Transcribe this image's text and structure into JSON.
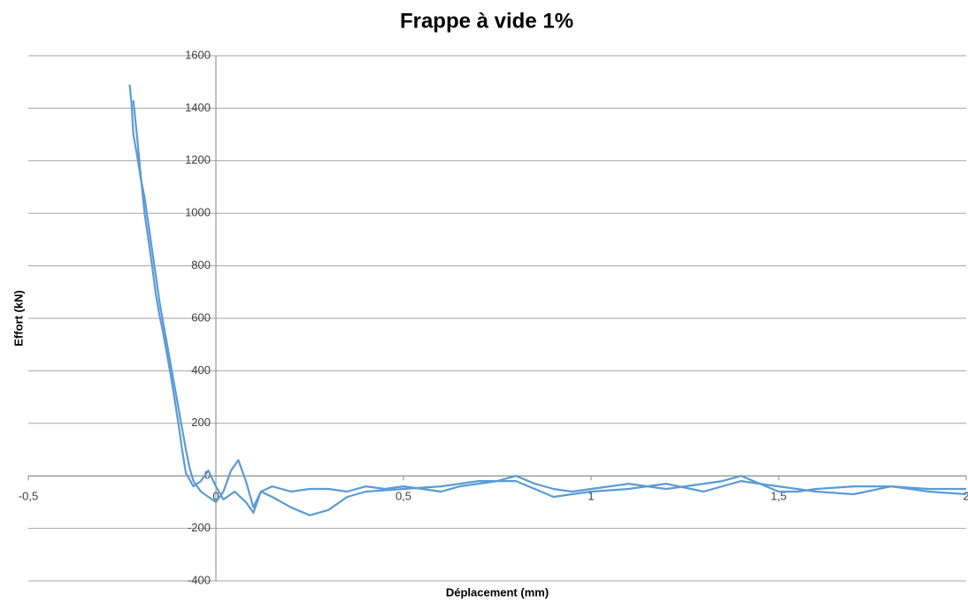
{
  "chart_data": {
    "type": "line",
    "title": "Frappe à vide 1%",
    "x_label": "Déplacement (mm)",
    "y_label": "Effort (kN)",
    "xlim": [
      -0.5,
      2
    ],
    "xticks": [
      {
        "value": -0.5,
        "label": "-0,5"
      },
      0,
      {
        "value": 0.5,
        "label": "0,5"
      },
      1,
      {
        "value": 1.5,
        "label": "1,5"
      },
      2
    ],
    "ylim": [
      -400,
      1600
    ],
    "yticks": [
      -400,
      -200,
      0,
      200,
      400,
      600,
      800,
      1000,
      1200,
      1400,
      1600
    ],
    "grid": true,
    "series": [
      {
        "color": "#5b9bd5",
        "x": [
          -0.23,
          -0.225,
          -0.22,
          -0.21,
          -0.2,
          -0.19,
          -0.18,
          -0.17,
          -0.16,
          -0.15,
          -0.14,
          -0.13,
          -0.12,
          -0.11,
          -0.1,
          -0.09,
          -0.08,
          -0.07,
          -0.06,
          -0.04,
          -0.02,
          0,
          0.02,
          0.04,
          0.06,
          0.08,
          0.1,
          0.12,
          0.15,
          0.2,
          0.25,
          0.3,
          0.35,
          0.4,
          0.45,
          0.5,
          0.55,
          0.6,
          0.65,
          0.7,
          0.75,
          0.8,
          0.85,
          0.9,
          0.95,
          1.0,
          1.05,
          1.1,
          1.15,
          1.2,
          1.25,
          1.3,
          1.35,
          1.4,
          1.45,
          1.5,
          1.55,
          1.6,
          1.7,
          1.8,
          1.9,
          2.0
        ],
        "values": [
          1490,
          1420,
          1300,
          1220,
          1130,
          1060,
          960,
          860,
          760,
          660,
          580,
          500,
          420,
          340,
          260,
          180,
          100,
          30,
          -20,
          -60,
          -80,
          -100,
          -60,
          20,
          60,
          -20,
          -120,
          -60,
          -40,
          -60,
          -50,
          -50,
          -60,
          -40,
          -50,
          -40,
          -50,
          -60,
          -40,
          -30,
          -20,
          0,
          -30,
          -50,
          -60,
          -50,
          -40,
          -30,
          -40,
          -50,
          -40,
          -30,
          -20,
          0,
          -30,
          -60,
          -60,
          -50,
          -40,
          -40,
          -50,
          -50
        ]
      },
      {
        "color": "#5b9bd5",
        "x": [
          -0.22,
          -0.21,
          -0.2,
          -0.19,
          -0.18,
          -0.17,
          -0.16,
          -0.15,
          -0.14,
          -0.13,
          -0.12,
          -0.11,
          -0.1,
          -0.09,
          -0.08,
          -0.06,
          -0.04,
          -0.02,
          0,
          0.02,
          0.05,
          0.08,
          0.1,
          0.12,
          0.15,
          0.2,
          0.25,
          0.3,
          0.35,
          0.4,
          0.5,
          0.6,
          0.7,
          0.8,
          0.9,
          1.0,
          1.1,
          1.2,
          1.3,
          1.4,
          1.5,
          1.6,
          1.7,
          1.8,
          1.9,
          2.0
        ],
        "values": [
          1430,
          1290,
          1140,
          1000,
          900,
          800,
          690,
          610,
          540,
          460,
          380,
          290,
          200,
          100,
          10,
          -40,
          -20,
          20,
          -40,
          -90,
          -60,
          -100,
          -140,
          -60,
          -80,
          -120,
          -150,
          -130,
          -80,
          -60,
          -50,
          -40,
          -20,
          -20,
          -80,
          -60,
          -50,
          -30,
          -60,
          -20,
          -40,
          -60,
          -70,
          -40,
          -60,
          -70
        ]
      }
    ]
  }
}
